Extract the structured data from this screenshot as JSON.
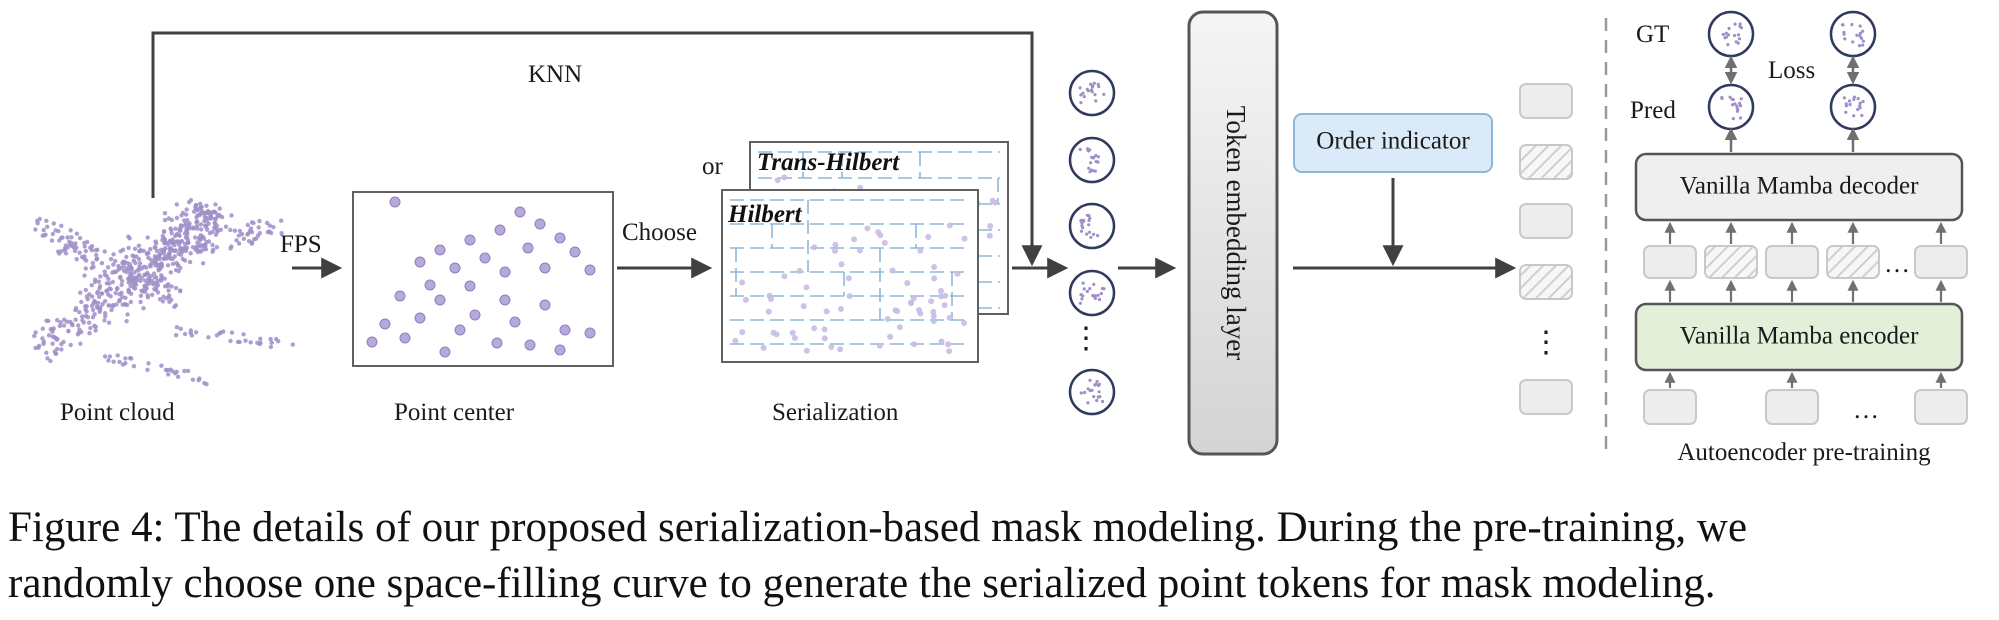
{
  "diagram": {
    "knn_label": "KNN",
    "fps_label": "FPS",
    "choose_label": "Choose",
    "or_label": "or",
    "point_cloud_label": "Point cloud",
    "point_center_label": "Point center",
    "serialization_label": "Serialization",
    "trans_hilbert_label": "Trans-Hilbert",
    "hilbert_label": "Hilbert",
    "token_embedding_label": "Token embedding layer",
    "order_indicator_label": "Order indicator",
    "vdots": "⋮",
    "gt_label": "GT",
    "pred_label": "Pred",
    "loss_label": "Loss",
    "decoder_label": "Vanilla Mamba decoder",
    "encoder_label": "Vanilla Mamba encoder",
    "ellipsis": "…",
    "autoencoder_label": "Autoencoder pre-training",
    "colors": {
      "point": "#9f8fc8",
      "arrow": "#404040",
      "order_fill": "#dbeaf8",
      "order_stroke": "#8fb7dd",
      "encoder_fill": "#e3efd9",
      "decoder_fill": "#efefef",
      "embed_fill_top": "#f4f4f4",
      "embed_fill_bottom": "#d6d6d6",
      "curve": "#8fb8d8"
    }
  },
  "caption": {
    "line1": "Figure 4: The details of our proposed serialization-based mask modeling. During the pre-training, we",
    "line2": "randomly choose one space-filling curve to generate the serialized point tokens for mask modeling."
  }
}
